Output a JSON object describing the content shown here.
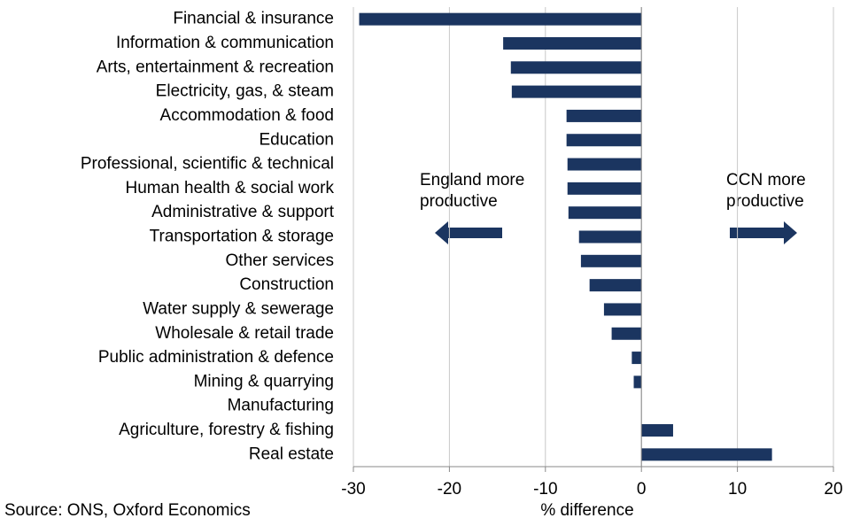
{
  "chart_data": {
    "type": "barh",
    "categories": [
      "Financial & insurance",
      "Information & communication",
      "Arts, entertainment & recreation",
      "Electricity, gas, & steam",
      "Accommodation & food",
      "Education",
      "Professional, scientific & technical",
      "Human health & social work",
      "Administrative & support",
      "Transportation & storage",
      "Other services",
      "Construction",
      "Water supply & sewerage",
      "Wholesale & retail trade",
      "Public administration & defence",
      "Mining & quarrying",
      "Manufacturing",
      "Agriculture, forestry & fishing",
      "Real estate"
    ],
    "values": [
      -29.4,
      -14.4,
      -13.6,
      -13.5,
      -7.8,
      -7.8,
      -7.7,
      -7.7,
      -7.6,
      -6.5,
      -6.3,
      -5.4,
      -3.9,
      -3.1,
      -1.0,
      -0.8,
      0,
      3.3,
      13.6
    ],
    "color": "#1b3560",
    "xlim": [
      -30,
      20
    ],
    "xticks": [
      -30,
      -20,
      -10,
      0,
      10,
      20
    ],
    "grid": true,
    "xlabel": "% difference",
    "source": "Source: ONS, Oxford Economics",
    "annotations": {
      "left": [
        "England more",
        "productive"
      ],
      "right": [
        "CCN more",
        "productive"
      ]
    }
  }
}
